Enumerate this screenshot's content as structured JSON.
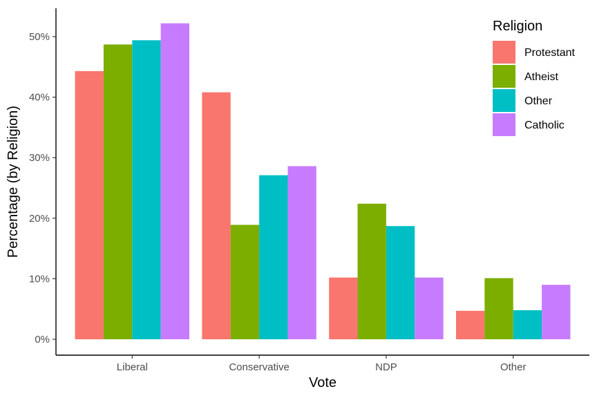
{
  "chart_data": {
    "type": "bar",
    "xlabel": "Vote",
    "ylabel": "Percentage (by Religion)",
    "categories": [
      "Liberal",
      "Conservative",
      "NDP",
      "Other"
    ],
    "ylim": [
      0,
      0.55
    ],
    "yticks": [
      0,
      0.1,
      0.2,
      0.3,
      0.4,
      0.5
    ],
    "ytick_labels": [
      "0%",
      "10%",
      "20%",
      "30%",
      "40%",
      "50%"
    ],
    "grid": false,
    "legend": {
      "title": "Religion",
      "placement": "top-right"
    },
    "series": [
      {
        "name": "Protestant",
        "color": "#F8766D",
        "values": [
          0.443,
          0.408,
          0.102,
          0.047
        ]
      },
      {
        "name": "Atheist",
        "color": "#7CAE00",
        "values": [
          0.487,
          0.189,
          0.224,
          0.101
        ]
      },
      {
        "name": "Other",
        "color": "#00BFC4",
        "values": [
          0.494,
          0.271,
          0.187,
          0.048
        ]
      },
      {
        "name": "Catholic",
        "color": "#C77CFF",
        "values": [
          0.522,
          0.286,
          0.102,
          0.09
        ]
      }
    ]
  }
}
